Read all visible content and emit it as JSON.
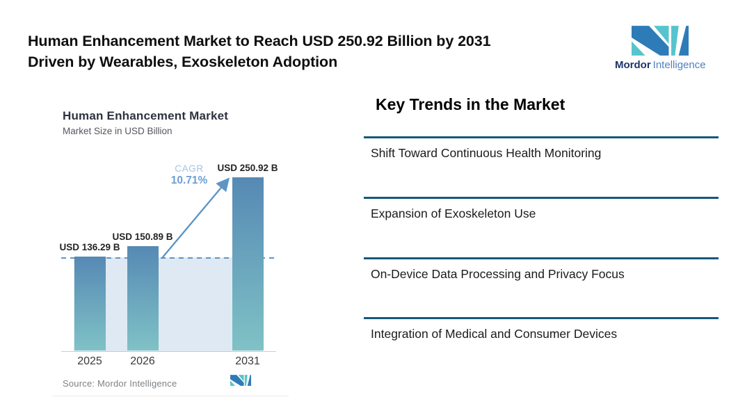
{
  "header": {
    "title_line1": "Human Enhancement Market to Reach USD 250.92 Billion by 2031",
    "title_line2": "Driven by Wearables, Exoskeleton Adoption"
  },
  "brand": {
    "name_primary": "Mordor",
    "name_secondary": "Intelligence",
    "color_dark_blue": "#2d7cb7",
    "color_teal": "#56c4cc"
  },
  "chart": {
    "title": "Human Enhancement Market",
    "subtitle": "Market Size in USD Billion",
    "cagr_label": "CAGR",
    "cagr_value": "10.71%",
    "source": "Source: Mordor Intelligence",
    "accent_blue": "#5e95c5"
  },
  "chart_data": {
    "type": "bar",
    "title": "Human Enhancement Market",
    "ylabel": "Market Size in USD Billion",
    "categories": [
      "2025",
      "2026",
      "2031"
    ],
    "values": [
      136.29,
      150.89,
      250.92
    ],
    "value_labels": [
      "USD 136.29 B",
      "USD 150.89 B",
      "USD 250.92 B"
    ],
    "cagr_percent": 10.71,
    "annotations": [
      {
        "text": "CAGR 10.71%",
        "type": "growth-arrow",
        "from": "2026",
        "to": "2031"
      }
    ],
    "reference_line": {
      "y": 136.29,
      "style": "dashed"
    },
    "bar_gradient_top": "#5689b4",
    "bar_gradient_bottom": "#7fc2c6",
    "shaded_region_color": "#dfe9f3",
    "grid": false,
    "legend": false
  },
  "trends": {
    "heading": "Key Trends in the Market",
    "divider_color": "#16587b",
    "items": [
      "Shift Toward Continuous Health Monitoring",
      "Expansion of Exoskeleton Use",
      "On-Device Data Processing and Privacy Focus",
      "Integration of Medical and Consumer Devices"
    ]
  }
}
